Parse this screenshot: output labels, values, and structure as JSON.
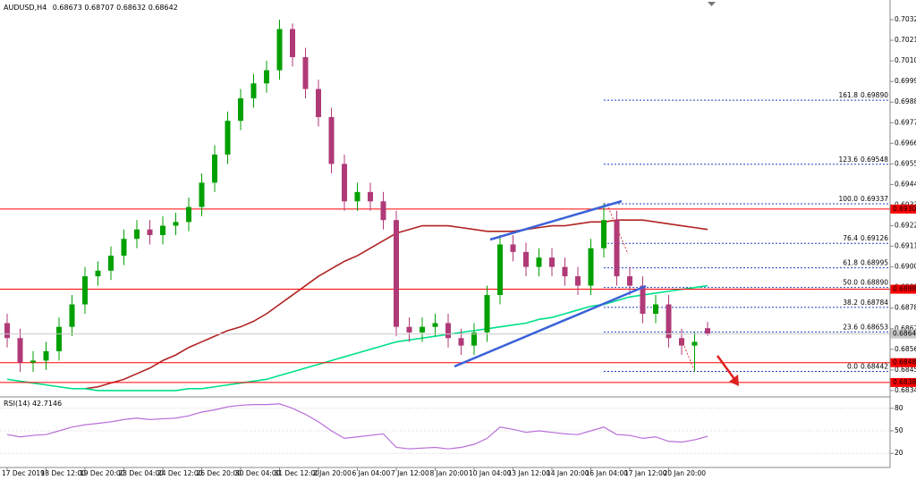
{
  "chart_data": [
    {
      "type": "candlestick",
      "symbol": "AUDUSD,H4",
      "categories": [
        "17 Dec 2019",
        null,
        null,
        "18 Dec 12:00",
        null,
        null,
        "19 Dec 20:00",
        null,
        null,
        "23 Dec 04:00",
        null,
        null,
        "24 Dec 12:00",
        null,
        null,
        "26 Dec 20:00",
        null,
        null,
        "30 Dec 04:00",
        null,
        null,
        "31 Dec 12:00",
        null,
        null,
        "2 Jan 20:00",
        null,
        null,
        "6 Jan 04:00",
        null,
        null,
        "7 Jan 12:00",
        null,
        null,
        "8 Jan 20:00",
        null,
        null,
        "10 Jan 04:00",
        null,
        null,
        "13 Jan 12:00",
        null,
        null,
        "14 Jan 20:00",
        null,
        null,
        "16 Jan 04:00",
        null,
        null,
        "17 Jan 12:00",
        null,
        null,
        "20 Jan 20:00",
        null,
        null,
        null
      ],
      "open": [
        0.687,
        0.6862,
        0.6849,
        0.685,
        0.6855,
        0.6868,
        0.688,
        0.6895,
        0.6898,
        0.6906,
        0.6915,
        0.692,
        0.6917,
        0.6922,
        0.6924,
        0.6932,
        0.6945,
        0.696,
        0.6978,
        0.699,
        0.6998,
        0.7005,
        0.7027,
        0.7012,
        0.6995,
        0.698,
        0.6955,
        0.6935,
        0.694,
        0.6935,
        0.6925,
        0.6868,
        0.6865,
        0.6868,
        0.687,
        0.6862,
        0.6858,
        0.6865,
        0.6885,
        0.6912,
        0.6908,
        0.69,
        0.6905,
        0.69,
        0.6895,
        0.689,
        0.691,
        0.6925,
        0.6895,
        0.689,
        0.6875,
        0.688,
        0.6862,
        0.6858,
        0.68673
      ],
      "high": [
        0.6875,
        0.6867,
        0.6855,
        0.686,
        0.6873,
        0.6885,
        0.69,
        0.6903,
        0.6911,
        0.692,
        0.6925,
        0.6925,
        0.6927,
        0.6929,
        0.6937,
        0.695,
        0.6965,
        0.6983,
        0.6995,
        0.7003,
        0.701,
        0.7032,
        0.703,
        0.7017,
        0.7,
        0.6985,
        0.696,
        0.6945,
        0.6945,
        0.694,
        0.693,
        0.6873,
        0.6873,
        0.6875,
        0.6875,
        0.6867,
        0.687,
        0.689,
        0.6917,
        0.6917,
        0.6913,
        0.691,
        0.691,
        0.6905,
        0.69,
        0.6915,
        0.6934,
        0.693,
        0.69,
        0.6895,
        0.6885,
        0.6885,
        0.6867,
        0.6865,
        0.68707
      ],
      "low": [
        0.6857,
        0.6844,
        0.6844,
        0.6845,
        0.685,
        0.6863,
        0.6875,
        0.689,
        0.6893,
        0.6901,
        0.691,
        0.6912,
        0.6912,
        0.6917,
        0.6919,
        0.6927,
        0.694,
        0.6955,
        0.6973,
        0.6985,
        0.6993,
        0.7,
        0.7007,
        0.699,
        0.6975,
        0.695,
        0.693,
        0.693,
        0.693,
        0.692,
        0.6863,
        0.686,
        0.686,
        0.6863,
        0.6857,
        0.6853,
        0.6853,
        0.686,
        0.688,
        0.6903,
        0.6895,
        0.6895,
        0.6895,
        0.689,
        0.6885,
        0.6885,
        0.6905,
        0.689,
        0.6885,
        0.687,
        0.687,
        0.6857,
        0.6853,
        0.6844,
        0.68632
      ],
      "close": [
        0.6862,
        0.6849,
        0.685,
        0.6855,
        0.6868,
        0.688,
        0.6895,
        0.6898,
        0.6906,
        0.6915,
        0.692,
        0.6917,
        0.6922,
        0.6924,
        0.6932,
        0.6945,
        0.696,
        0.6978,
        0.699,
        0.6998,
        0.7005,
        0.7027,
        0.7012,
        0.6995,
        0.698,
        0.6955,
        0.6935,
        0.694,
        0.6935,
        0.6925,
        0.6868,
        0.6865,
        0.6868,
        0.687,
        0.6862,
        0.6858,
        0.6865,
        0.6885,
        0.6912,
        0.6908,
        0.69,
        0.6905,
        0.69,
        0.6895,
        0.689,
        0.691,
        0.6925,
        0.6895,
        0.689,
        0.6875,
        0.688,
        0.6862,
        0.6858,
        0.686,
        0.68642
      ],
      "up_color": "#00a000",
      "down_color": "#b03a78",
      "moving_averages": [
        {
          "color": "#b22222",
          "values": [
            null,
            null,
            null,
            null,
            null,
            null,
            0.6835,
            0.6836,
            0.6838,
            0.684,
            0.6843,
            0.6846,
            0.685,
            0.6853,
            0.6857,
            0.686,
            0.6863,
            0.6866,
            0.6868,
            0.6871,
            0.6875,
            0.688,
            0.6885,
            0.689,
            0.6895,
            0.6899,
            0.6903,
            0.6906,
            0.691,
            0.6914,
            0.6918,
            0.692,
            0.6922,
            0.6922,
            0.6922,
            0.6921,
            0.692,
            0.6919,
            0.6919,
            0.6919,
            0.692,
            0.6921,
            0.6922,
            0.6922,
            0.6923,
            0.6924,
            0.6924,
            0.6925,
            0.6925,
            0.6925,
            0.6924,
            0.6923,
            0.6922,
            0.6921,
            0.692
          ]
        },
        {
          "color": "#00e08a",
          "values": [
            0.684,
            0.6839,
            0.6838,
            0.6837,
            0.6836,
            0.6835,
            0.6835,
            0.6834,
            0.6834,
            0.6834,
            0.6834,
            0.6834,
            0.6834,
            0.6834,
            0.6835,
            0.6835,
            0.6836,
            0.6837,
            0.6838,
            0.6839,
            0.684,
            0.6842,
            0.6844,
            0.6846,
            0.6848,
            0.685,
            0.6852,
            0.6854,
            0.6856,
            0.6858,
            0.686,
            0.6861,
            0.6862,
            0.6863,
            0.6864,
            0.6865,
            0.6866,
            0.6867,
            0.6868,
            0.6869,
            0.687,
            0.6872,
            0.6873,
            0.6875,
            0.6877,
            0.6879,
            0.688,
            0.6882,
            0.6884,
            0.6885,
            0.6886,
            0.6887,
            0.6888,
            0.6889,
            0.689
          ]
        }
      ],
      "levels": [
        0.69309,
        0.68881,
        0.68489,
        0.68383
      ],
      "level_color": "#ff0000",
      "fibonacci": [
        {
          "level": "161.8",
          "value": 0.6989,
          "label": "0.69890"
        },
        {
          "level": "123.6",
          "value": 0.69548
        },
        {
          "level": "100.0",
          "value": 0.69337
        },
        {
          "level": "76.4",
          "value": 0.69126
        },
        {
          "level": "61.8",
          "value": 0.68995
        },
        {
          "level": "50.0",
          "value": 0.6889,
          "label": "0.68890"
        },
        {
          "level": "38.2",
          "value": 0.68784
        },
        {
          "level": "23.6",
          "value": 0.68653
        },
        {
          "level": "0.0",
          "value": 0.68442
        }
      ],
      "fib_color": "#2040c0",
      "ylim": [
        0.68311,
        0.70406
      ],
      "yticks": [
        {
          "value": 0.7032,
          "label": "0.70320"
        },
        {
          "value": 0.7021,
          "label": "0.70210"
        },
        {
          "value": 0.701,
          "label": "0.70100"
        },
        {
          "value": 0.6999,
          "label": "0.69990"
        },
        {
          "value": 0.6988,
          "label": "0.69880"
        },
        {
          "value": 0.6977,
          "label": "0.69770"
        },
        {
          "value": 0.6966,
          "label": "0.69660"
        },
        {
          "value": 0.6955,
          "label": "0.69550"
        },
        {
          "value": 0.6944,
          "label": "0.69440"
        },
        {
          "value": 0.6933,
          "label": "0.69330"
        },
        {
          "value": 0.6922,
          "label": "0.69220"
        },
        {
          "value": 0.6911,
          "label": "0.69110"
        },
        {
          "value": 0.69,
          "label": "0.69000"
        },
        {
          "value": 0.6889,
          "label": "0.68890"
        },
        {
          "value": 0.6878,
          "label": "0.68780"
        },
        {
          "value": 0.6867,
          "label": "0.68670"
        },
        {
          "value": 0.6856,
          "label": "0.68560"
        },
        {
          "value": 0.6845,
          "label": "0.68450"
        },
        {
          "value": 0.6834,
          "label": "0.68340"
        }
      ]
    },
    {
      "type": "line",
      "title": "RSI(14)",
      "color": "#b86fd8",
      "values": [
        45,
        42,
        44,
        45,
        50,
        55,
        58,
        60,
        62,
        65,
        67,
        65,
        66,
        67,
        70,
        75,
        78,
        82,
        84,
        85,
        85,
        86,
        80,
        72,
        62,
        50,
        40,
        42,
        44,
        46,
        28,
        26,
        27,
        28,
        26,
        28,
        32,
        40,
        55,
        52,
        48,
        50,
        48,
        46,
        45,
        50,
        55,
        45,
        44,
        40,
        42,
        36,
        35,
        38,
        42.7146
      ],
      "ylim": [
        0,
        100
      ],
      "yticks": [
        80,
        50,
        20
      ]
    }
  ]
}
